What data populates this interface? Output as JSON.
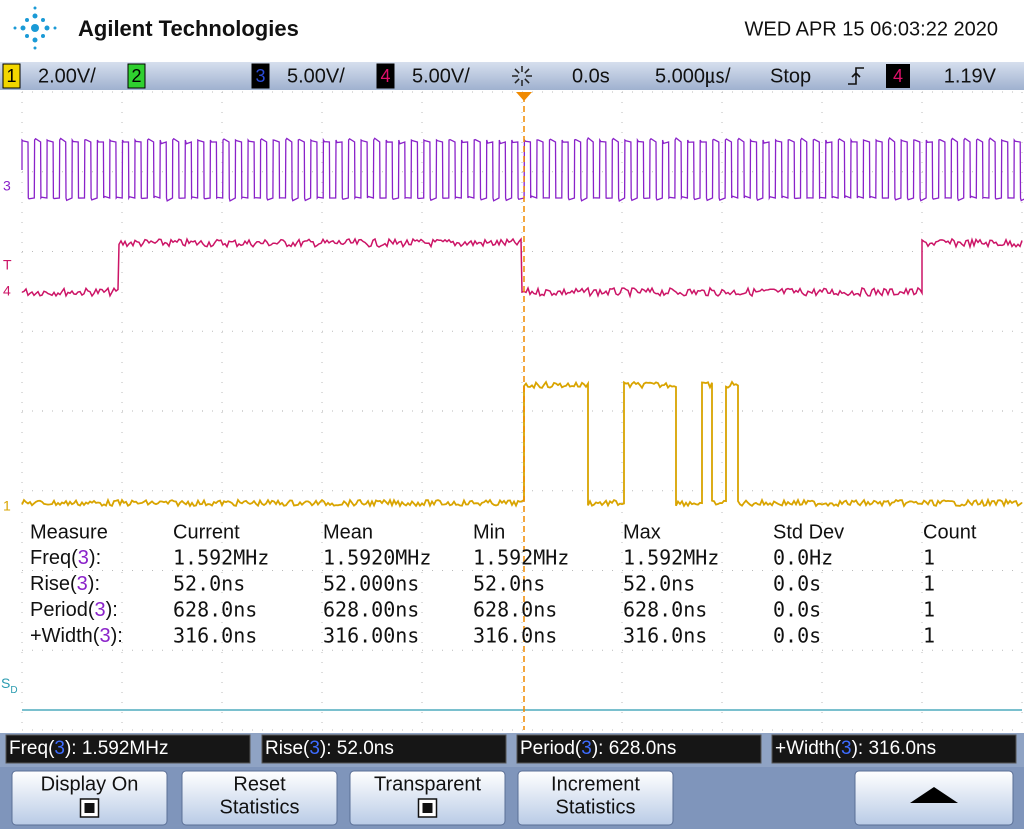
{
  "header": {
    "brand": "Agilent Technologies",
    "datetime": "WED APR 15 06:03:22 2020"
  },
  "status_bar": {
    "channels": [
      {
        "number": "1",
        "scale": "2.00V/"
      },
      {
        "number": "2"
      },
      {
        "number": "3",
        "scale": "5.00V/"
      },
      {
        "number": "4",
        "scale": "5.00V/"
      }
    ],
    "delay": "0.0s",
    "timebase": "5.000㎲/",
    "run_state": "Stop",
    "trigger_source": "4",
    "trigger_level": "1.19V"
  },
  "markers": [
    "3",
    "T",
    "4",
    "1"
  ],
  "serial_marker": {
    "main": "S",
    "sub": "D"
  },
  "measurements": {
    "headers": [
      "Measure",
      "Current",
      "Mean",
      "Min",
      "Max",
      "Std Dev",
      "Count"
    ],
    "rows": [
      {
        "name": [
          "Freq(",
          "3",
          "):"
        ],
        "values": [
          "1.592MHz",
          "1.5920MHz",
          "1.592MHz",
          "1.592MHz",
          "0.0Hz",
          "1"
        ]
      },
      {
        "name": [
          "Rise(",
          "3",
          "):"
        ],
        "values": [
          "52.0ns",
          "52.000ns",
          "52.0ns",
          "52.0ns",
          "0.0s",
          "1"
        ]
      },
      {
        "name": [
          "Period(",
          "3",
          "):"
        ],
        "values": [
          "628.0ns",
          "628.00ns",
          "628.0ns",
          "628.0ns",
          "0.0s",
          "1"
        ]
      },
      {
        "name": [
          "+Width(",
          "3",
          "):"
        ],
        "values": [
          "316.0ns",
          "316.00ns",
          "316.0ns",
          "316.0ns",
          "0.0s",
          "1"
        ]
      }
    ]
  },
  "summary_bar": [
    {
      "parts": [
        "Freq(",
        "3",
        "): 1.592MHz"
      ]
    },
    {
      "parts": [
        "Rise(",
        "3",
        "): 52.0ns"
      ]
    },
    {
      "parts": [
        "Period(",
        "3",
        "): 628.0ns"
      ]
    },
    {
      "parts": [
        "+Width(",
        "3",
        "): 316.0ns"
      ]
    }
  ],
  "softkeys": [
    {
      "lines": [
        "Display On"
      ],
      "checkbox": true
    },
    {
      "lines": [
        "Reset",
        "Statistics"
      ]
    },
    {
      "lines": [
        "Transparent"
      ],
      "checkbox": true
    },
    {
      "lines": [
        "Increment",
        "Statistics"
      ]
    }
  ]
}
